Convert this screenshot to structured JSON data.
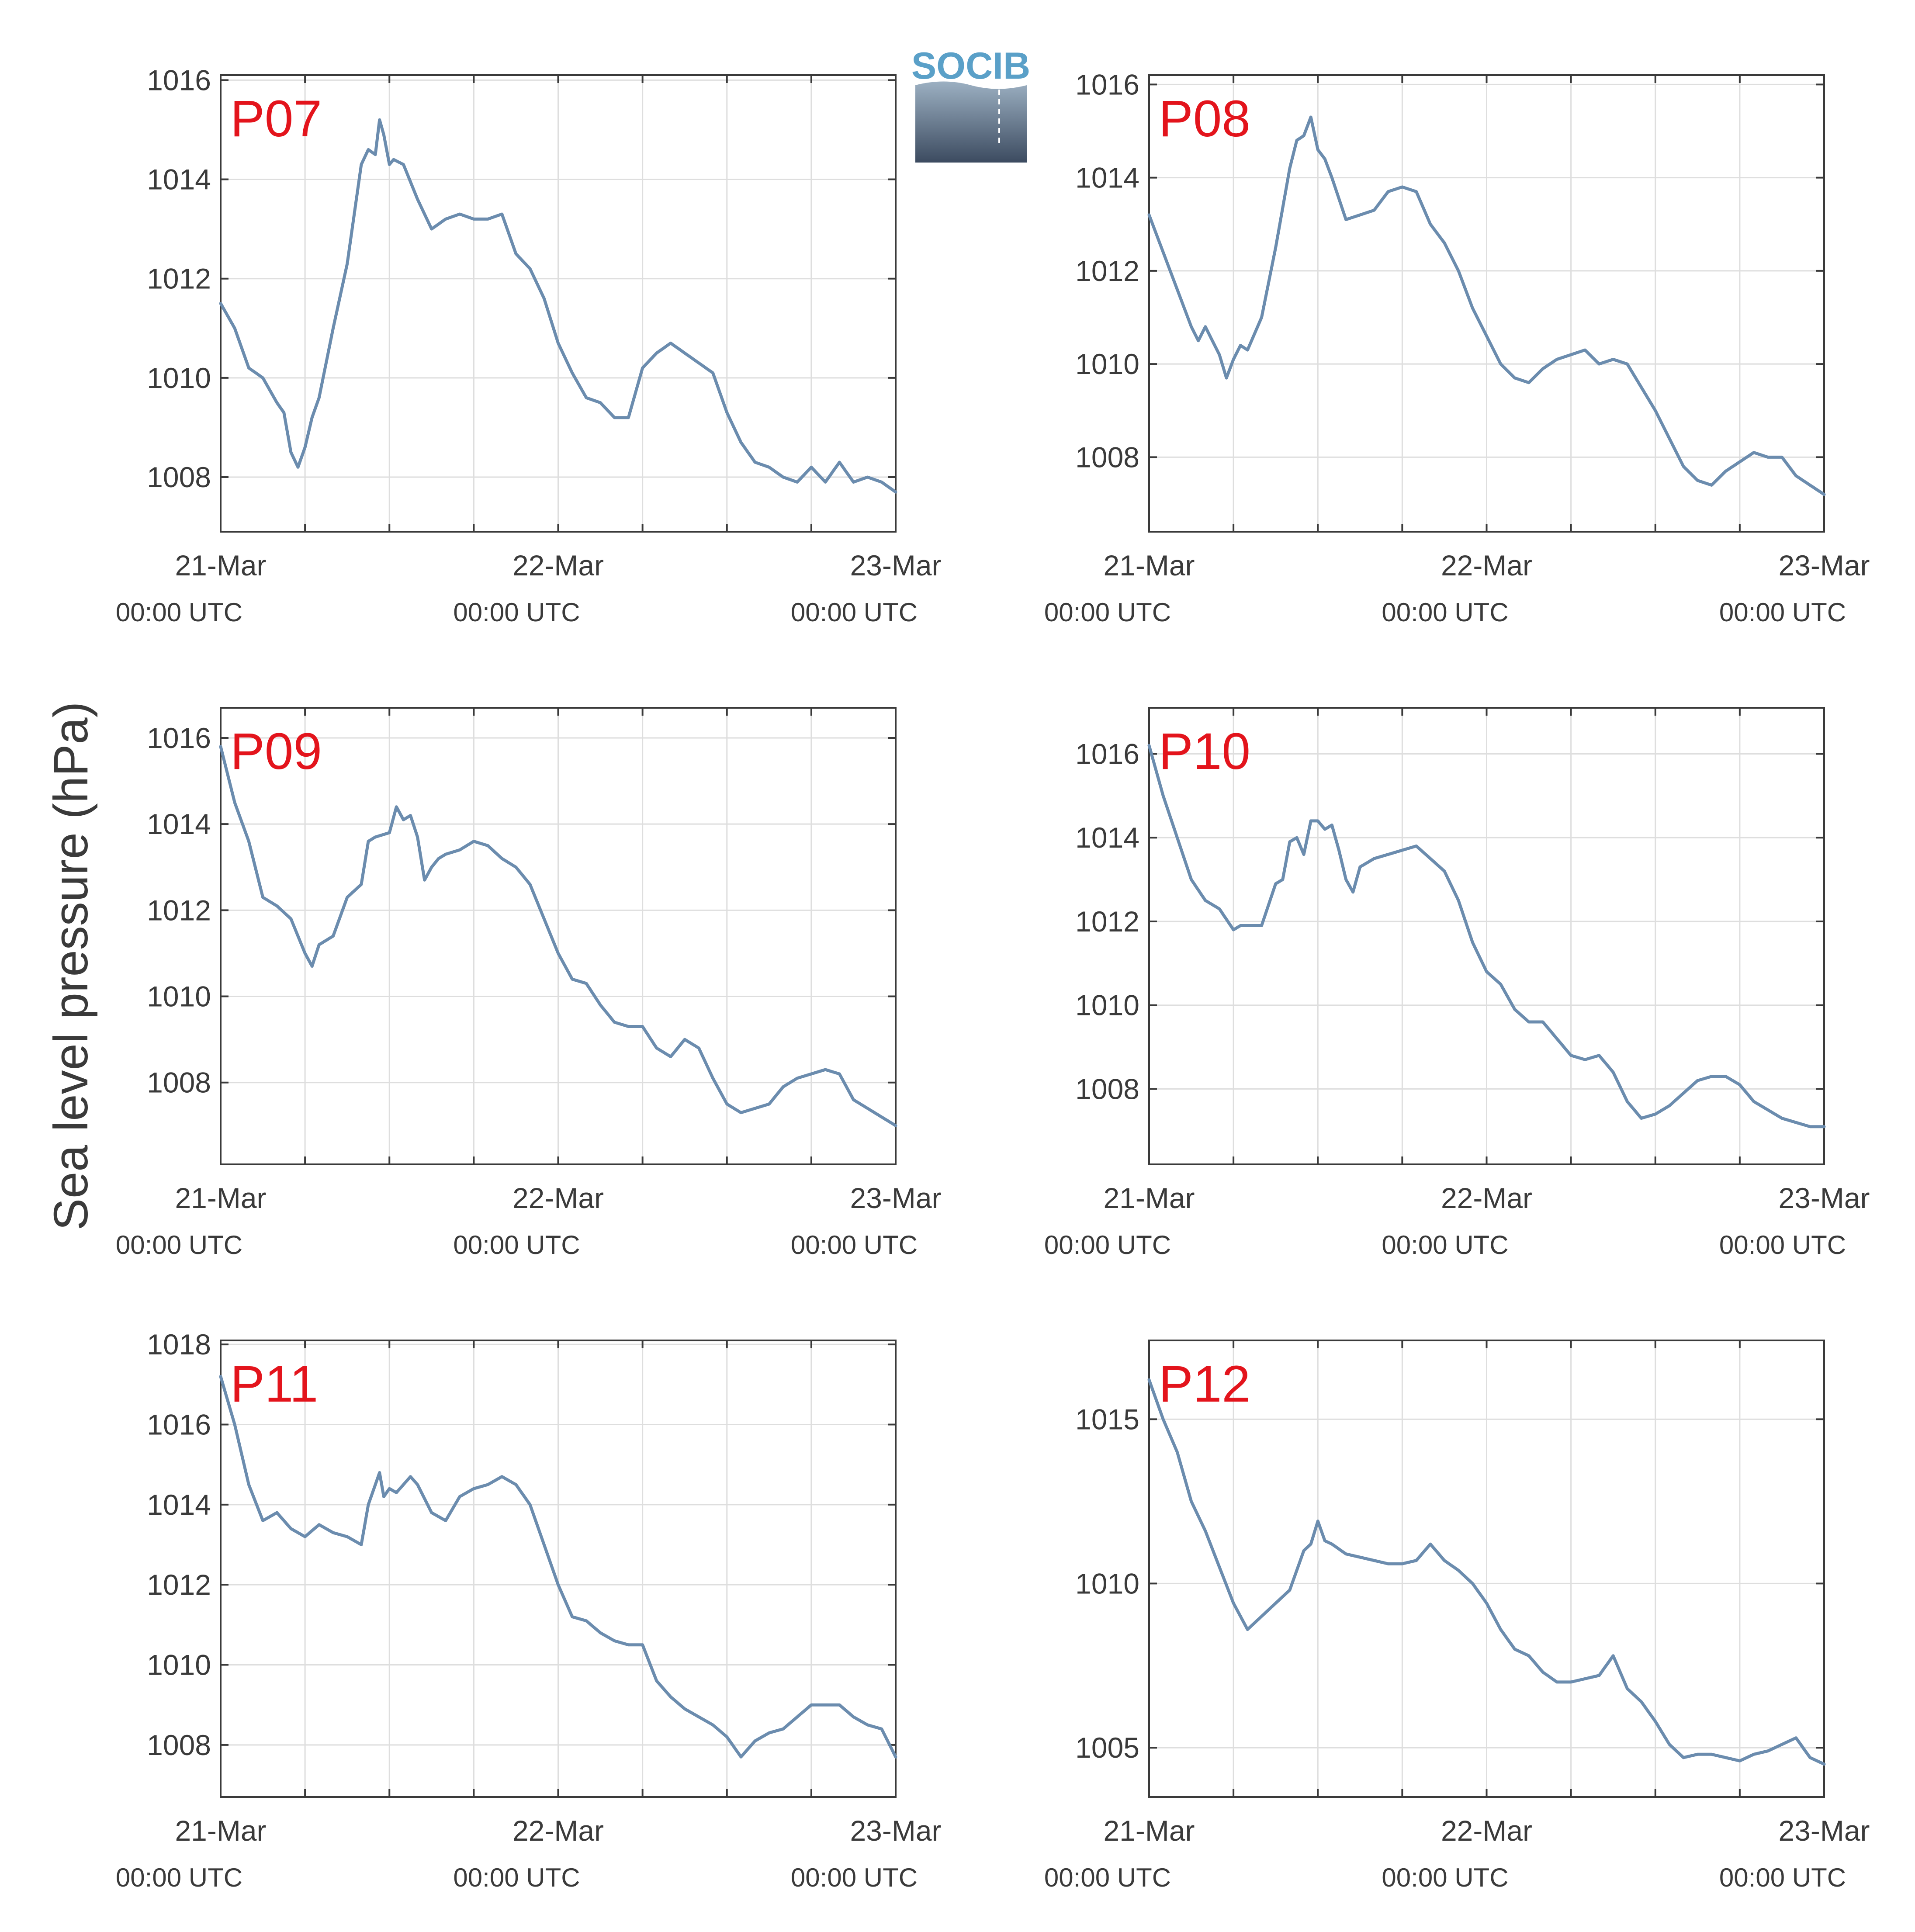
{
  "figure": {
    "ylabel": "Sea level pressure (hPa)",
    "logo": {
      "text": "SOCIB",
      "color": "#5aa0c8"
    },
    "line_color": "#6b8cae",
    "title_color": "#e3141c"
  },
  "chart_data": [
    {
      "type": "line",
      "title": "P07",
      "ylim": [
        1006.9,
        1016.1
      ],
      "yticks": [
        1008,
        1010,
        1012,
        1014,
        1016
      ],
      "xticks": [
        {
          "x": 0,
          "label": "21-Mar",
          "sub": "00:00 UTC"
        },
        {
          "x": 24,
          "label": "22-Mar",
          "sub": "00:00 UTC"
        },
        {
          "x": 48,
          "label": "23-Mar",
          "sub": "00:00 UTC"
        }
      ],
      "xlim": [
        0,
        48
      ],
      "grid": true,
      "x": [
        0,
        1,
        2,
        3,
        4,
        4.5,
        5,
        5.5,
        6,
        6.5,
        7,
        8,
        9,
        10,
        10.5,
        11,
        11.3,
        11.6,
        12,
        12.3,
        13,
        14,
        15,
        16,
        17,
        18,
        19,
        20,
        21,
        22,
        23,
        24,
        25,
        26,
        27,
        28,
        29,
        30,
        31,
        32,
        33,
        34,
        35,
        36,
        37,
        38,
        39,
        40,
        41,
        42,
        43,
        44,
        45,
        46,
        47,
        48
      ],
      "y": [
        1011.5,
        1011.0,
        1010.2,
        1010.0,
        1009.5,
        1009.3,
        1008.5,
        1008.2,
        1008.6,
        1009.2,
        1009.6,
        1011.0,
        1012.3,
        1014.3,
        1014.6,
        1014.5,
        1015.2,
        1014.9,
        1014.3,
        1014.4,
        1014.3,
        1013.6,
        1013.0,
        1013.2,
        1013.3,
        1013.2,
        1013.2,
        1013.3,
        1012.5,
        1012.2,
        1011.6,
        1010.7,
        1010.1,
        1009.6,
        1009.5,
        1009.2,
        1009.2,
        1010.2,
        1010.5,
        1010.7,
        1010.5,
        1010.3,
        1010.1,
        1009.3,
        1008.7,
        1008.3,
        1008.2,
        1008.0,
        1007.9,
        1008.2,
        1007.9,
        1008.3,
        1007.9,
        1008.0,
        1007.9,
        1007.7
      ]
    },
    {
      "type": "line",
      "title": "P08",
      "ylim": [
        1006.4,
        1016.2
      ],
      "yticks": [
        1008,
        1010,
        1012,
        1014,
        1016
      ],
      "xticks": [
        {
          "x": 0,
          "label": "21-Mar",
          "sub": "00:00 UTC"
        },
        {
          "x": 24,
          "label": "22-Mar",
          "sub": "00:00 UTC"
        },
        {
          "x": 48,
          "label": "23-Mar",
          "sub": "00:00 UTC"
        }
      ],
      "xlim": [
        0,
        48
      ],
      "grid": true,
      "x": [
        0,
        1,
        2,
        3,
        3.5,
        4,
        4.5,
        5,
        5.5,
        6,
        6.5,
        7,
        8,
        9,
        10,
        10.5,
        11,
        11.5,
        12,
        12.5,
        13,
        14,
        15,
        16,
        17,
        18,
        19,
        20,
        21,
        22,
        23,
        24,
        25,
        26,
        27,
        28,
        29,
        30,
        31,
        32,
        33,
        34,
        35,
        36,
        37,
        38,
        39,
        40,
        41,
        42,
        43,
        44,
        45,
        46,
        47,
        48
      ],
      "y": [
        1013.2,
        1012.4,
        1011.6,
        1010.8,
        1010.5,
        1010.8,
        1010.5,
        1010.2,
        1009.7,
        1010.1,
        1010.4,
        1010.3,
        1011.0,
        1012.5,
        1014.2,
        1014.8,
        1014.9,
        1015.3,
        1014.6,
        1014.4,
        1014.0,
        1013.1,
        1013.2,
        1013.3,
        1013.7,
        1013.8,
        1013.7,
        1013.0,
        1012.6,
        1012.0,
        1011.2,
        1010.6,
        1010.0,
        1009.7,
        1009.6,
        1009.9,
        1010.1,
        1010.2,
        1010.3,
        1010.0,
        1010.1,
        1010.0,
        1009.5,
        1009.0,
        1008.4,
        1007.8,
        1007.5,
        1007.4,
        1007.7,
        1007.9,
        1008.1,
        1008.0,
        1008.0,
        1007.6,
        1007.4,
        1007.2
      ]
    },
    {
      "type": "line",
      "title": "P09",
      "ylim": [
        1006.1,
        1016.7
      ],
      "yticks": [
        1008,
        1010,
        1012,
        1014,
        1016
      ],
      "xticks": [
        {
          "x": 0,
          "label": "21-Mar",
          "sub": "00:00 UTC"
        },
        {
          "x": 24,
          "label": "22-Mar",
          "sub": "00:00 UTC"
        },
        {
          "x": 48,
          "label": "23-Mar",
          "sub": "00:00 UTC"
        }
      ],
      "xlim": [
        0,
        48
      ],
      "grid": true,
      "x": [
        0,
        1,
        2,
        3,
        4,
        5,
        6,
        6.5,
        7,
        7.5,
        8,
        9,
        10,
        10.5,
        11,
        12,
        12.5,
        13,
        13.5,
        14,
        14.5,
        15,
        15.5,
        16,
        17,
        18,
        19,
        20,
        21,
        22,
        23,
        24,
        25,
        26,
        27,
        28,
        29,
        30,
        31,
        32,
        33,
        34,
        35,
        36,
        37,
        38,
        39,
        40,
        41,
        42,
        43,
        44,
        45,
        46,
        47,
        48
      ],
      "y": [
        1015.8,
        1014.5,
        1013.6,
        1012.3,
        1012.1,
        1011.8,
        1011.0,
        1010.7,
        1011.2,
        1011.3,
        1011.4,
        1012.3,
        1012.6,
        1013.6,
        1013.7,
        1013.8,
        1014.4,
        1014.1,
        1014.2,
        1013.7,
        1012.7,
        1013.0,
        1013.2,
        1013.3,
        1013.4,
        1013.6,
        1013.5,
        1013.2,
        1013.0,
        1012.6,
        1011.8,
        1011.0,
        1010.4,
        1010.3,
        1009.8,
        1009.4,
        1009.3,
        1009.3,
        1008.8,
        1008.6,
        1009.0,
        1008.8,
        1008.1,
        1007.5,
        1007.3,
        1007.4,
        1007.5,
        1007.9,
        1008.1,
        1008.2,
        1008.3,
        1008.2,
        1007.6,
        1007.4,
        1007.2,
        1007.0
      ]
    },
    {
      "type": "line",
      "title": "P10",
      "ylim": [
        1006.2,
        1017.1
      ],
      "yticks": [
        1008,
        1010,
        1012,
        1014,
        1016
      ],
      "xticks": [
        {
          "x": 0,
          "label": "21-Mar",
          "sub": "00:00 UTC"
        },
        {
          "x": 24,
          "label": "22-Mar",
          "sub": "00:00 UTC"
        },
        {
          "x": 48,
          "label": "23-Mar",
          "sub": "00:00 UTC"
        }
      ],
      "xlim": [
        0,
        48
      ],
      "grid": true,
      "x": [
        0,
        1,
        2,
        3,
        4,
        5,
        6,
        6.5,
        7,
        8,
        9,
        9.5,
        10,
        10.5,
        11,
        11.5,
        12,
        12.5,
        13,
        13.5,
        14,
        14.5,
        15,
        15.5,
        16,
        17,
        18,
        19,
        20,
        21,
        22,
        23,
        24,
        25,
        26,
        27,
        28,
        29,
        30,
        31,
        32,
        33,
        34,
        35,
        36,
        37,
        38,
        39,
        40,
        41,
        42,
        43,
        44,
        45,
        46,
        47,
        48
      ],
      "y": [
        1016.2,
        1015.0,
        1014.0,
        1013.0,
        1012.5,
        1012.3,
        1011.8,
        1011.9,
        1011.9,
        1011.9,
        1012.9,
        1013.0,
        1013.9,
        1014.0,
        1013.6,
        1014.4,
        1014.4,
        1014.2,
        1014.3,
        1013.7,
        1013.0,
        1012.7,
        1013.3,
        1013.4,
        1013.5,
        1013.6,
        1013.7,
        1013.8,
        1013.5,
        1013.2,
        1012.5,
        1011.5,
        1010.8,
        1010.5,
        1009.9,
        1009.6,
        1009.6,
        1009.2,
        1008.8,
        1008.7,
        1008.8,
        1008.4,
        1007.7,
        1007.3,
        1007.4,
        1007.6,
        1007.9,
        1008.2,
        1008.3,
        1008.3,
        1008.1,
        1007.7,
        1007.5,
        1007.3,
        1007.2,
        1007.1,
        1007.1
      ]
    },
    {
      "type": "line",
      "title": "P11",
      "ylim": [
        1006.7,
        1018.1
      ],
      "yticks": [
        1008,
        1010,
        1012,
        1014,
        1016,
        1018
      ],
      "xticks": [
        {
          "x": 0,
          "label": "21-Mar",
          "sub": "00:00 UTC"
        },
        {
          "x": 24,
          "label": "22-Mar",
          "sub": "00:00 UTC"
        },
        {
          "x": 48,
          "label": "23-Mar",
          "sub": "00:00 UTC"
        }
      ],
      "xlim": [
        0,
        48
      ],
      "grid": true,
      "x": [
        0,
        1,
        2,
        3,
        4,
        5,
        6,
        7,
        8,
        9,
        10,
        10.5,
        11,
        11.3,
        11.6,
        12,
        12.5,
        13,
        13.5,
        14,
        15,
        16,
        17,
        18,
        19,
        20,
        21,
        22,
        23,
        24,
        25,
        26,
        27,
        28,
        29,
        30,
        31,
        32,
        33,
        34,
        35,
        36,
        37,
        38,
        39,
        40,
        41,
        42,
        43,
        44,
        45,
        46,
        47,
        48
      ],
      "y": [
        1017.2,
        1016.0,
        1014.5,
        1013.6,
        1013.8,
        1013.4,
        1013.2,
        1013.5,
        1013.3,
        1013.2,
        1013.0,
        1014.0,
        1014.5,
        1014.8,
        1014.2,
        1014.4,
        1014.3,
        1014.5,
        1014.7,
        1014.5,
        1013.8,
        1013.6,
        1014.2,
        1014.4,
        1014.5,
        1014.7,
        1014.5,
        1014.0,
        1013.0,
        1012.0,
        1011.2,
        1011.1,
        1010.8,
        1010.6,
        1010.5,
        1010.5,
        1009.6,
        1009.2,
        1008.9,
        1008.7,
        1008.5,
        1008.2,
        1007.7,
        1008.1,
        1008.3,
        1008.4,
        1008.7,
        1009.0,
        1009.0,
        1009.0,
        1008.7,
        1008.5,
        1008.4,
        1007.7
      ]
    },
    {
      "type": "line",
      "title": "P12",
      "ylim": [
        1003.5,
        1017.4
      ],
      "yticks": [
        1005,
        1010,
        1015
      ],
      "xticks": [
        {
          "x": 0,
          "label": "21-Mar",
          "sub": "00:00 UTC"
        },
        {
          "x": 24,
          "label": "22-Mar",
          "sub": "00:00 UTC"
        },
        {
          "x": 48,
          "label": "23-Mar",
          "sub": "00:00 UTC"
        }
      ],
      "xlim": [
        0,
        48
      ],
      "grid": true,
      "x": [
        0,
        1,
        2,
        3,
        4,
        5,
        6,
        7,
        8,
        9,
        10,
        11,
        11.5,
        12,
        12.5,
        13,
        14,
        15,
        16,
        17,
        18,
        19,
        20,
        21,
        22,
        23,
        24,
        25,
        26,
        27,
        28,
        29,
        30,
        31,
        32,
        33,
        33.5,
        34,
        35,
        36,
        37,
        38,
        39,
        40,
        41,
        42,
        43,
        44,
        45,
        46,
        47,
        48
      ],
      "y": [
        1016.2,
        1015.0,
        1014.0,
        1012.5,
        1011.6,
        1010.5,
        1009.4,
        1008.6,
        1009.0,
        1009.4,
        1009.8,
        1011.0,
        1011.2,
        1011.9,
        1011.3,
        1011.2,
        1010.9,
        1010.8,
        1010.7,
        1010.6,
        1010.6,
        1010.7,
        1011.2,
        1010.7,
        1010.4,
        1010.0,
        1009.4,
        1008.6,
        1008.0,
        1007.8,
        1007.3,
        1007.0,
        1007.0,
        1007.1,
        1007.2,
        1007.8,
        1007.3,
        1006.8,
        1006.4,
        1005.8,
        1005.1,
        1004.7,
        1004.8,
        1004.8,
        1004.7,
        1004.6,
        1004.8,
        1004.9,
        1005.1,
        1005.3,
        1004.7,
        1004.5
      ]
    }
  ]
}
